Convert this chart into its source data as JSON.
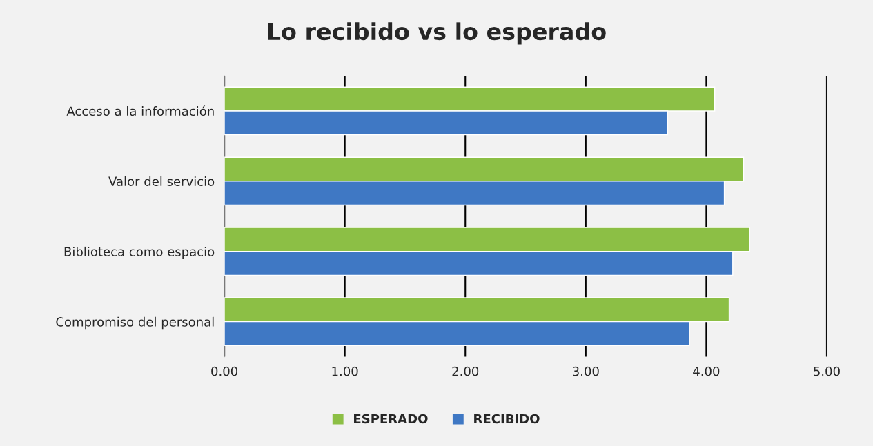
{
  "chart_data": {
    "type": "bar",
    "orientation": "horizontal",
    "title": "Lo recibido vs lo esperado",
    "categories": [
      "Acceso a la información",
      "Valor del servicio",
      "Biblioteca como espacio",
      "Compromiso del personal"
    ],
    "series": [
      {
        "name": "ESPERADO",
        "color": "#8cbf45",
        "values": [
          4.07,
          4.31,
          4.36,
          4.19
        ]
      },
      {
        "name": "RECIBIDO",
        "color": "#3f78c4",
        "values": [
          3.68,
          4.15,
          4.22,
          3.86
        ]
      }
    ],
    "xlim": [
      0,
      5
    ],
    "xticks": [
      {
        "value": 0,
        "label": "0.00"
      },
      {
        "value": 1,
        "label": "1.00"
      },
      {
        "value": 2,
        "label": "2.00"
      },
      {
        "value": 3,
        "label": "3.00"
      },
      {
        "value": 4,
        "label": "4.00"
      },
      {
        "value": 5,
        "label": "5.00"
      }
    ],
    "grid": "x",
    "legend": "bottom"
  }
}
